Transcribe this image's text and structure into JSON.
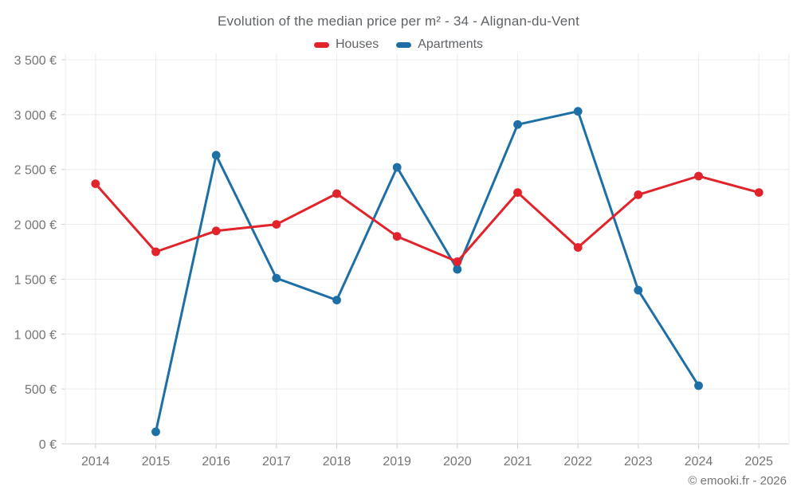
{
  "title": "Evolution of the median price per m² - 34 - Alignan-du-Vent",
  "legend": [
    {
      "label": "Houses",
      "color": "#e1232b"
    },
    {
      "label": "Apartments",
      "color": "#1d6fa5"
    }
  ],
  "footer": "© emooki.fr - 2026",
  "chart_data": {
    "type": "line",
    "title": "Evolution of the median price per m² - 34 - Alignan-du-Vent",
    "x": [
      2014,
      2015,
      2016,
      2017,
      2018,
      2019,
      2020,
      2021,
      2022,
      2023,
      2024,
      2025
    ],
    "series": [
      {
        "name": "Apartments",
        "color": "#1d6fa5",
        "values": [
          null,
          110,
          2630,
          1510,
          1310,
          2520,
          1590,
          2910,
          3030,
          1400,
          530,
          null
        ]
      },
      {
        "name": "Houses",
        "color": "#e1232b",
        "values": [
          2370,
          1750,
          1940,
          2000,
          2280,
          1890,
          1660,
          2290,
          1790,
          2270,
          2440,
          2290
        ]
      }
    ],
    "xlabel": "",
    "ylabel": "",
    "ylim": [
      0,
      3500
    ],
    "yticks": [
      0,
      500,
      1000,
      1500,
      2000,
      2500,
      3000,
      3500
    ],
    "ytick_labels": [
      "0 €",
      "500 €",
      "1 000 €",
      "1 500 €",
      "2 000 €",
      "2 500 €",
      "3 000 €",
      "3 500 €"
    ],
    "grid": true,
    "legend_position": "top"
  }
}
